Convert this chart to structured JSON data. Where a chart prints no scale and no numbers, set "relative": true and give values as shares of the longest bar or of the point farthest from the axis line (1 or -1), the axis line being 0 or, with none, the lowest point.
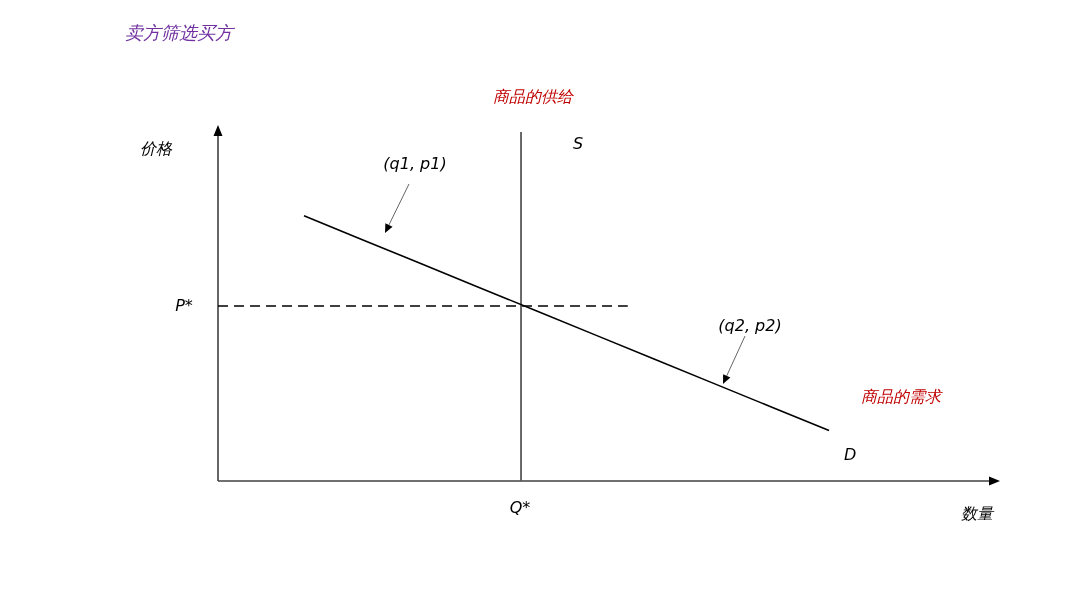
{
  "chart_data": {
    "type": "line",
    "title": "卖方筛选买方",
    "relative": true,
    "categories": [
      null,
      null,
      null,
      null,
      null,
      null,
      null,
      null,
      null,
      null
    ],
    "series": [
      {
        "name": "D",
        "color": "#000000",
        "values": [
          1,
          0.91,
          0.82,
          0.73,
          0.64,
          0.55,
          0.46,
          0.37,
          0.28,
          0.19
        ]
      }
    ],
    "ref_lines": [
      {
        "axis": "y",
        "value": 0.66,
        "label": "P*",
        "color": "#000000",
        "line_style": "dashed"
      }
    ],
    "annotations": [
      "(q1, p1)",
      "(q2, p2)",
      "商品的供给",
      "商品的需求",
      "S",
      "Q*",
      "价格",
      "数量"
    ]
  }
}
